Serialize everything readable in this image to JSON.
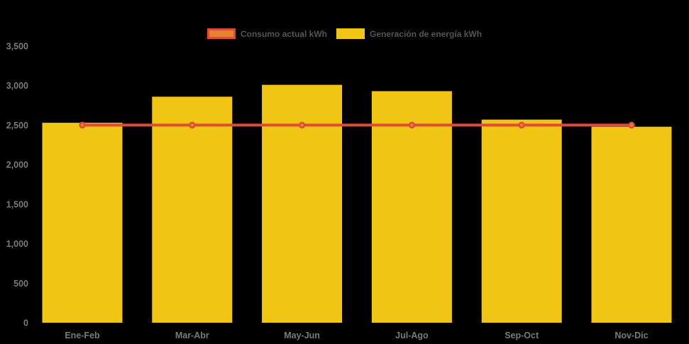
{
  "chart_data": {
    "type": "bar",
    "categories": [
      "Ene-Feb",
      "Mar-Abr",
      "May-Jun",
      "Jul-Ago",
      "Sep-Oct",
      "Nov-Dic"
    ],
    "series": [
      {
        "name": "Consumo actual kWh",
        "kind": "line",
        "values": [
          2500,
          2500,
          2500,
          2500,
          2500,
          2500
        ],
        "color": "#de4c38",
        "marker_fill": "#e8832c"
      },
      {
        "name": "Generación de energía kWh",
        "kind": "bar",
        "values": [
          2530,
          2860,
          3010,
          2930,
          2570,
          2480
        ],
        "color": "#f0c514"
      }
    ],
    "title": "",
    "xlabel": "",
    "ylabel": "",
    "ylim": [
      0,
      3500
    ],
    "ytick_step": 500,
    "yticks": [
      "0",
      "500",
      "1,000",
      "1,500",
      "2,000",
      "2,500",
      "3,000",
      "3,500"
    ],
    "legend_position": "top",
    "grid": false,
    "background_color": "#000000",
    "axis_label_color": "#7a7a7a",
    "legend_label_color": "#545454"
  }
}
